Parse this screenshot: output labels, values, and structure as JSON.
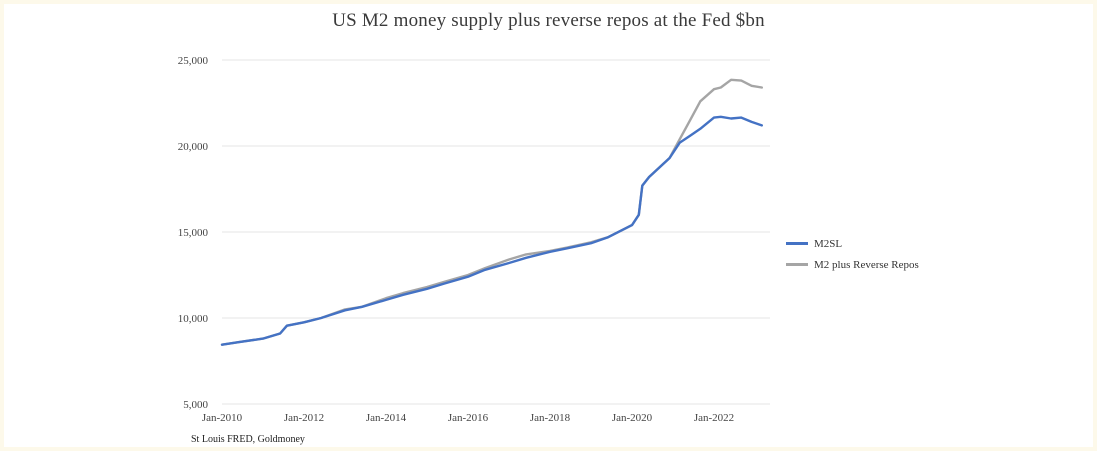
{
  "title": "US M2 money supply plus reverse repos at the Fed $bn",
  "source": "St Louis FRED, Goldmoney",
  "colors": {
    "m2sl": "#4472c4",
    "m2_rrp": "#a5a5a5",
    "grid": "#e4e4e4",
    "background": "#fdf9ea"
  },
  "chart_data": {
    "type": "line",
    "title": "US M2 money supply plus reverse repos at the Fed $bn",
    "xlabel": "",
    "ylabel": "",
    "x_range": [
      "2010-01",
      "2023-03"
    ],
    "ylim": [
      5000,
      25000
    ],
    "y_ticks": [
      "5,000",
      "10,000",
      "15,000",
      "20,000",
      "25,000"
    ],
    "y_tick_values": [
      5000,
      10000,
      15000,
      20000,
      25000
    ],
    "x_ticks": [
      "Jan-2010",
      "Jan-2012",
      "Jan-2014",
      "Jan-2016",
      "Jan-2018",
      "Jan-2020",
      "Jan-2022"
    ],
    "x_tick_values": [
      "2010-01",
      "2012-01",
      "2014-01",
      "2016-01",
      "2018-01",
      "2020-01",
      "2022-01"
    ],
    "grid": "horizontal",
    "legend_position": "right",
    "series": [
      {
        "name": "M2SL",
        "color": "#4472c4",
        "points": [
          [
            "2010-01",
            8450
          ],
          [
            "2010-06",
            8600
          ],
          [
            "2011-01",
            8800
          ],
          [
            "2011-06",
            9100
          ],
          [
            "2011-08",
            9550
          ],
          [
            "2012-01",
            9750
          ],
          [
            "2012-06",
            10000
          ],
          [
            "2013-01",
            10450
          ],
          [
            "2013-06",
            10650
          ],
          [
            "2014-01",
            11050
          ],
          [
            "2014-06",
            11350
          ],
          [
            "2015-01",
            11700
          ],
          [
            "2015-06",
            12000
          ],
          [
            "2016-01",
            12400
          ],
          [
            "2016-06",
            12800
          ],
          [
            "2017-01",
            13200
          ],
          [
            "2017-06",
            13500
          ],
          [
            "2018-01",
            13850
          ],
          [
            "2018-06",
            14050
          ],
          [
            "2019-01",
            14350
          ],
          [
            "2019-06",
            14700
          ],
          [
            "2020-01",
            15400
          ],
          [
            "2020-03",
            16000
          ],
          [
            "2020-04",
            17700
          ],
          [
            "2020-06",
            18200
          ],
          [
            "2020-12",
            19300
          ],
          [
            "2021-03",
            20200
          ],
          [
            "2021-06",
            20600
          ],
          [
            "2021-09",
            21000
          ],
          [
            "2022-01",
            21650
          ],
          [
            "2022-03",
            21700
          ],
          [
            "2022-06",
            21600
          ],
          [
            "2022-09",
            21650
          ],
          [
            "2022-12",
            21400
          ],
          [
            "2023-03",
            21200
          ]
        ]
      },
      {
        "name": "M2 plus Reverse Repos",
        "color": "#a5a5a5",
        "points": [
          [
            "2010-01",
            8450
          ],
          [
            "2010-06",
            8600
          ],
          [
            "2011-01",
            8800
          ],
          [
            "2011-06",
            9100
          ],
          [
            "2011-08",
            9550
          ],
          [
            "2012-01",
            9750
          ],
          [
            "2012-06",
            10000
          ],
          [
            "2013-01",
            10500
          ],
          [
            "2013-06",
            10650
          ],
          [
            "2014-01",
            11150
          ],
          [
            "2014-06",
            11450
          ],
          [
            "2015-01",
            11800
          ],
          [
            "2015-06",
            12100
          ],
          [
            "2016-01",
            12500
          ],
          [
            "2016-06",
            12900
          ],
          [
            "2017-01",
            13400
          ],
          [
            "2017-06",
            13700
          ],
          [
            "2018-01",
            13900
          ],
          [
            "2018-06",
            14100
          ],
          [
            "2019-01",
            14400
          ],
          [
            "2019-06",
            14700
          ],
          [
            "2020-01",
            15400
          ],
          [
            "2020-03",
            16000
          ],
          [
            "2020-04",
            17700
          ],
          [
            "2020-06",
            18200
          ],
          [
            "2020-12",
            19300
          ],
          [
            "2021-03",
            20400
          ],
          [
            "2021-06",
            21500
          ],
          [
            "2021-09",
            22600
          ],
          [
            "2022-01",
            23300
          ],
          [
            "2022-03",
            23400
          ],
          [
            "2022-06",
            23850
          ],
          [
            "2022-09",
            23800
          ],
          [
            "2022-12",
            23500
          ],
          [
            "2023-03",
            23400
          ]
        ]
      }
    ]
  }
}
